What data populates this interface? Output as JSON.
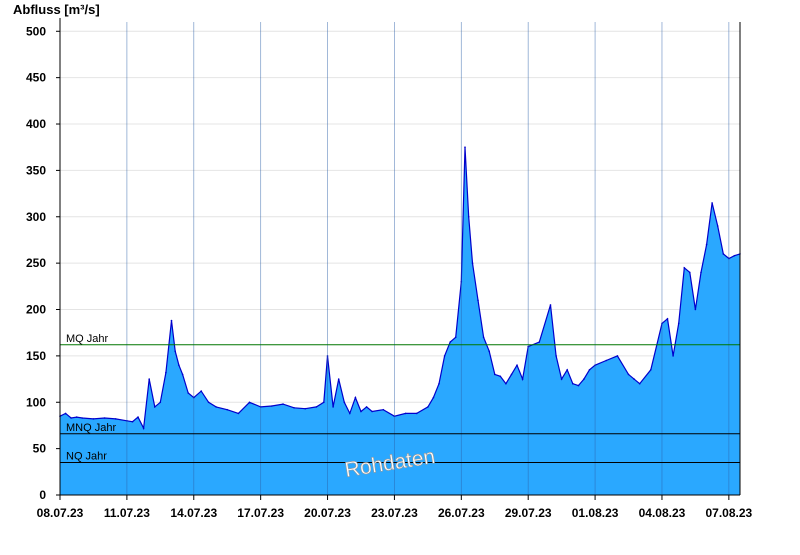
{
  "chart_data": {
    "type": "area",
    "title": "",
    "xlabel": "",
    "ylabel": "Abfluss [m³/s]",
    "ylim": [
      0,
      510
    ],
    "yticks": [
      0,
      50,
      100,
      150,
      200,
      250,
      300,
      350,
      400,
      450,
      500
    ],
    "x_start": "08.07.23 00:00",
    "x_end": "07.08.23 12:00",
    "xtick_labels": [
      "08.07.23",
      "11.07.23",
      "14.07.23",
      "17.07.23",
      "20.07.23",
      "23.07.23",
      "26.07.23",
      "29.07.23",
      "01.08.23",
      "04.08.23",
      "07.08.23"
    ],
    "watermark": "Rohdaten",
    "reference_lines": [
      {
        "label": "MQ Jahr",
        "value": 162,
        "color": "#007700"
      },
      {
        "label": "MNQ Jahr",
        "value": 66,
        "color": "#000000"
      },
      {
        "label": "NQ Jahr",
        "value": 35,
        "color": "#000000"
      }
    ],
    "series": [
      {
        "fill_color": "#2aa8ff",
        "line_color": "#0000cc",
        "x": [
          "08.07.23 00:00",
          "08.07.23 06:00",
          "08.07.23 12:00",
          "08.07.23 18:00",
          "09.07.23 00:00",
          "09.07.23 12:00",
          "10.07.23 00:00",
          "10.07.23 12:00",
          "11.07.23 00:00",
          "11.07.23 06:00",
          "11.07.23 12:00",
          "11.07.23 18:00",
          "12.07.23 00:00",
          "12.07.23 06:00",
          "12.07.23 12:00",
          "12.07.23 18:00",
          "13.07.23 00:00",
          "13.07.23 04:00",
          "13.07.23 08:00",
          "13.07.23 12:00",
          "13.07.23 18:00",
          "14.07.23 00:00",
          "14.07.23 08:00",
          "14.07.23 16:00",
          "15.07.23 00:00",
          "15.07.23 12:00",
          "16.07.23 00:00",
          "16.07.23 12:00",
          "17.07.23 00:00",
          "17.07.23 12:00",
          "18.07.23 00:00",
          "18.07.23 12:00",
          "19.07.23 00:00",
          "19.07.23 12:00",
          "19.07.23 20:00",
          "20.07.23 00:00",
          "20.07.23 06:00",
          "20.07.23 12:00",
          "20.07.23 18:00",
          "21.07.23 00:00",
          "21.07.23 06:00",
          "21.07.23 12:00",
          "21.07.23 18:00",
          "22.07.23 00:00",
          "22.07.23 12:00",
          "23.07.23 00:00",
          "23.07.23 12:00",
          "24.07.23 00:00",
          "24.07.23 12:00",
          "24.07.23 18:00",
          "25.07.23 00:00",
          "25.07.23 06:00",
          "25.07.23 12:00",
          "25.07.23 18:00",
          "26.07.23 00:00",
          "26.07.23 04:00",
          "26.07.23 08:00",
          "26.07.23 12:00",
          "26.07.23 18:00",
          "27.07.23 00:00",
          "27.07.23 06:00",
          "27.07.23 12:00",
          "27.07.23 18:00",
          "28.07.23 00:00",
          "28.07.23 06:00",
          "28.07.23 12:00",
          "28.07.23 18:00",
          "29.07.23 00:00",
          "29.07.23 12:00",
          "30.07.23 00:00",
          "30.07.23 06:00",
          "30.07.23 12:00",
          "30.07.23 18:00",
          "31.07.23 00:00",
          "31.07.23 06:00",
          "31.07.23 12:00",
          "31.07.23 18:00",
          "01.08.23 00:00",
          "01.08.23 12:00",
          "02.08.23 00:00",
          "02.08.23 12:00",
          "02.08.23 18:00",
          "03.08.23 00:00",
          "03.08.23 12:00",
          "04.08.23 00:00",
          "04.08.23 06:00",
          "04.08.23 12:00",
          "04.08.23 18:00",
          "05.08.23 00:00",
          "05.08.23 06:00",
          "05.08.23 12:00",
          "05.08.23 18:00",
          "06.08.23 00:00",
          "06.08.23 06:00",
          "06.08.23 12:00",
          "06.08.23 18:00",
          "07.08.23 00:00",
          "07.08.23 06:00",
          "07.08.23 12:00"
        ],
        "values": [
          85,
          88,
          83,
          84,
          83,
          82,
          83,
          82,
          80,
          79,
          84,
          72,
          125,
          95,
          100,
          132,
          188,
          155,
          140,
          130,
          110,
          105,
          112,
          100,
          95,
          92,
          88,
          100,
          95,
          96,
          98,
          94,
          93,
          95,
          100,
          150,
          95,
          125,
          100,
          88,
          105,
          90,
          95,
          90,
          92,
          85,
          88,
          88,
          95,
          105,
          120,
          150,
          165,
          170,
          230,
          375,
          300,
          250,
          210,
          170,
          155,
          130,
          128,
          120,
          130,
          140,
          125,
          160,
          165,
          205,
          150,
          125,
          135,
          120,
          118,
          125,
          135,
          140,
          145,
          150,
          130,
          125,
          120,
          135,
          185,
          190,
          150,
          185,
          245,
          240,
          200,
          240,
          270,
          315,
          290,
          260,
          255,
          258,
          260
        ]
      }
    ]
  }
}
